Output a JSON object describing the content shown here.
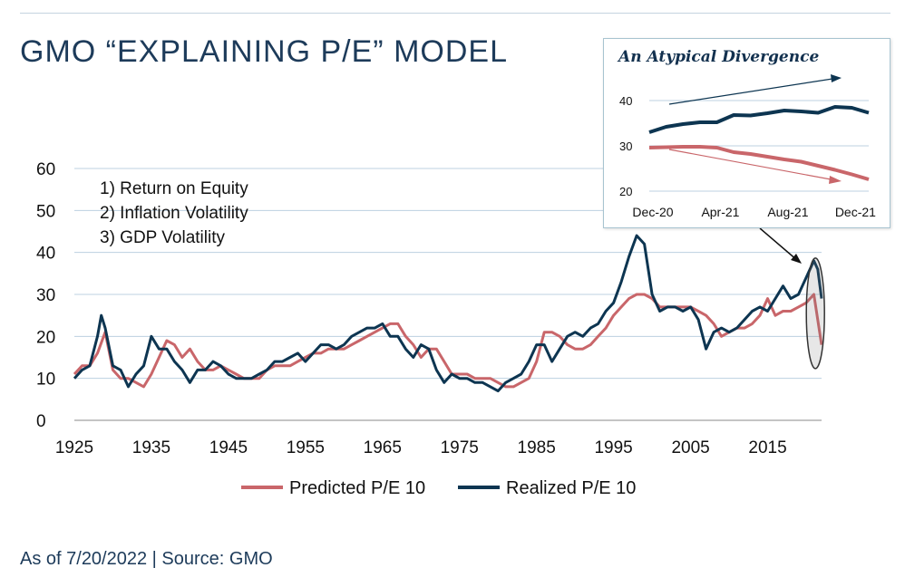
{
  "page": {
    "title": "GMO “EXPLAINING P/E” MODEL",
    "factors": [
      "1) Return on Equity",
      "2) Inflation Volatility",
      "3) GDP Volatility"
    ],
    "source": "As of 7/20/2022 | Source: GMO"
  },
  "colors": {
    "predicted": "#c9666a",
    "realized": "#0d3551",
    "grid": "#bcd0e0",
    "text": "#1d3b5a"
  },
  "chart_data": [
    {
      "type": "line",
      "title": "",
      "xlabel": "",
      "ylabel": "",
      "xlim": [
        1925,
        2022
      ],
      "ylim": [
        0,
        60
      ],
      "xticks": [
        1925,
        1935,
        1945,
        1955,
        1965,
        1975,
        1985,
        1995,
        2005,
        2015
      ],
      "yticks": [
        0,
        10,
        20,
        30,
        40,
        50,
        60
      ],
      "grid": true,
      "legend_position": "bottom-center",
      "series": [
        {
          "name": "Predicted P/E 10",
          "x": [
            1925,
            1926,
            1927,
            1928,
            1929,
            1930,
            1931,
            1932,
            1933,
            1934,
            1935,
            1936,
            1937,
            1938,
            1939,
            1940,
            1941,
            1942,
            1943,
            1944,
            1945,
            1946,
            1947,
            1948,
            1949,
            1950,
            1951,
            1952,
            1953,
            1954,
            1955,
            1956,
            1957,
            1958,
            1959,
            1960,
            1961,
            1962,
            1963,
            1964,
            1965,
            1966,
            1967,
            1968,
            1969,
            1970,
            1971,
            1972,
            1973,
            1974,
            1975,
            1976,
            1977,
            1978,
            1979,
            1980,
            1981,
            1982,
            1983,
            1984,
            1985,
            1986,
            1987,
            1988,
            1989,
            1990,
            1991,
            1992,
            1993,
            1994,
            1995,
            1996,
            1997,
            1998,
            1999,
            2000,
            2001,
            2002,
            2003,
            2004,
            2005,
            2006,
            2007,
            2008,
            2009,
            2010,
            2011,
            2012,
            2013,
            2014,
            2015,
            2016,
            2017,
            2018,
            2019,
            2020,
            2021,
            2022
          ],
          "values": [
            11,
            13,
            13,
            16,
            21,
            12,
            10,
            10,
            9,
            8,
            11,
            15,
            19,
            18,
            15,
            17,
            14,
            12,
            12,
            13,
            12,
            11,
            10,
            10,
            10,
            12,
            13,
            13,
            13,
            14,
            15,
            16,
            16,
            17,
            17,
            17,
            18,
            19,
            20,
            21,
            22,
            23,
            23,
            20,
            18,
            15,
            17,
            17,
            14,
            11,
            11,
            11,
            10,
            10,
            10,
            9,
            8,
            8,
            9,
            10,
            14,
            21,
            21,
            20,
            18,
            17,
            17,
            18,
            20,
            22,
            25,
            27,
            29,
            30,
            30,
            29,
            27,
            27,
            27,
            27,
            27,
            26,
            25,
            23,
            20,
            21,
            22,
            22,
            23,
            25,
            29,
            25,
            26,
            26,
            27,
            28,
            30,
            18
          ]
        },
        {
          "name": "Realized P/E 10",
          "x": [
            1925,
            1926,
            1927,
            1928,
            1928.5,
            1929,
            1930,
            1931,
            1932,
            1933,
            1934,
            1935,
            1936,
            1937,
            1938,
            1939,
            1940,
            1941,
            1942,
            1943,
            1944,
            1945,
            1946,
            1947,
            1948,
            1949,
            1950,
            1951,
            1952,
            1953,
            1954,
            1955,
            1956,
            1957,
            1958,
            1959,
            1960,
            1961,
            1962,
            1963,
            1964,
            1965,
            1966,
            1967,
            1968,
            1969,
            1970,
            1971,
            1972,
            1973,
            1974,
            1975,
            1976,
            1977,
            1978,
            1979,
            1980,
            1981,
            1982,
            1983,
            1984,
            1985,
            1986,
            1987,
            1988,
            1989,
            1990,
            1991,
            1992,
            1993,
            1994,
            1995,
            1996,
            1997,
            1998,
            1999,
            2000,
            2001,
            2002,
            2003,
            2004,
            2005,
            2006,
            2007,
            2008,
            2009,
            2010,
            2011,
            2012,
            2013,
            2014,
            2015,
            2016,
            2017,
            2018,
            2019,
            2020,
            2021,
            2021.5,
            2022
          ],
          "values": [
            10,
            12,
            13,
            20,
            25,
            22,
            13,
            12,
            8,
            11,
            13,
            20,
            17,
            17,
            14,
            12,
            9,
            12,
            12,
            14,
            13,
            11,
            10,
            10,
            10,
            11,
            12,
            14,
            14,
            15,
            16,
            14,
            16,
            18,
            18,
            17,
            18,
            20,
            21,
            22,
            22,
            23,
            20,
            20,
            17,
            15,
            18,
            17,
            12,
            9,
            11,
            10,
            10,
            9,
            9,
            8,
            7,
            9,
            10,
            11,
            14,
            18,
            18,
            14,
            17,
            20,
            21,
            20,
            22,
            23,
            26,
            28,
            33,
            39,
            44,
            42,
            30,
            26,
            27,
            27,
            26,
            27,
            24,
            17,
            21,
            22,
            21,
            22,
            24,
            26,
            27,
            26,
            29,
            32,
            29,
            30,
            34,
            38,
            36,
            29
          ]
        }
      ]
    },
    {
      "type": "line",
      "title": "An Atypical Divergence",
      "xlabel": "",
      "ylabel": "",
      "xticks": [
        "Dec-20",
        "Apr-21",
        "Aug-21",
        "Dec-21"
      ],
      "yticks": [
        20,
        30,
        40
      ],
      "ylim": [
        20,
        42
      ],
      "grid": true,
      "series": [
        {
          "name": "Predicted P/E 10",
          "x": [
            "Dec-20",
            "Jan-21",
            "Feb-21",
            "Mar-21",
            "Apr-21",
            "May-21",
            "Jun-21",
            "Jul-21",
            "Aug-21",
            "Sep-21",
            "Oct-21",
            "Nov-21",
            "Dec-21",
            "Jan-22"
          ],
          "values": [
            29.6,
            29.7,
            29.8,
            29.8,
            29.6,
            28.6,
            28.2,
            27.6,
            27.0,
            26.5,
            25.6,
            24.7,
            23.7,
            22.6
          ]
        },
        {
          "name": "Realized P/E 10",
          "x": [
            "Dec-20",
            "Jan-21",
            "Feb-21",
            "Mar-21",
            "Apr-21",
            "May-21",
            "Jun-21",
            "Jul-21",
            "Aug-21",
            "Sep-21",
            "Oct-21",
            "Nov-21",
            "Dec-21",
            "Jan-22"
          ],
          "values": [
            33.0,
            34.2,
            34.8,
            35.2,
            35.2,
            36.8,
            36.7,
            37.2,
            37.8,
            37.6,
            37.3,
            38.6,
            38.4,
            37.3
          ]
        }
      ]
    }
  ]
}
